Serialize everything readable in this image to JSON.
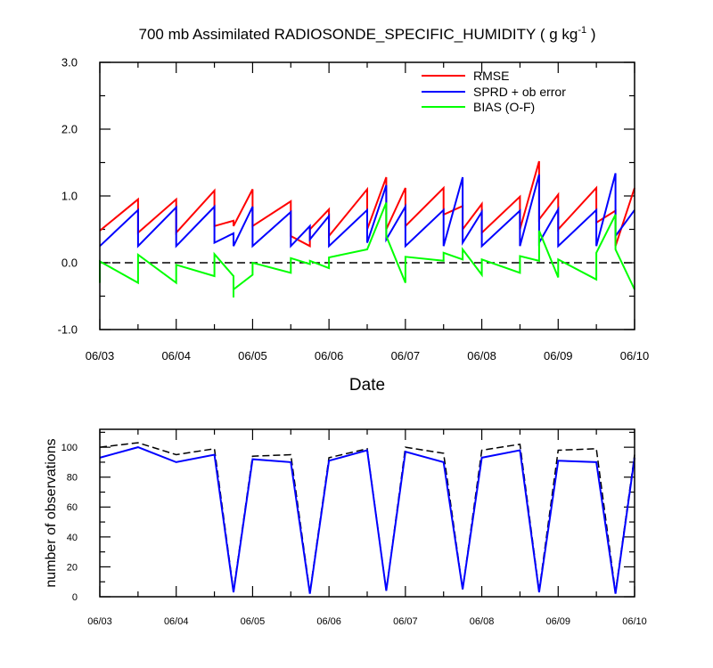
{
  "chart_data": [
    {
      "type": "line",
      "title": "700 mb Assimilated RADIOSONDE_SPECIFIC_HUMIDITY",
      "title_units_main": "( g kg",
      "title_units_sup": "-1",
      "title_units_end": " )",
      "xlabel": "Date",
      "ylabel": "",
      "x_unit": "day",
      "xlim": [
        0,
        7
      ],
      "ylim": [
        -1.0,
        3.0
      ],
      "x_ticks": [
        0,
        1,
        2,
        3,
        4,
        5,
        6,
        7
      ],
      "x_tick_labels": [
        "06/03",
        "06/04",
        "06/05",
        "06/06",
        "06/07",
        "06/08",
        "06/09",
        "06/10"
      ],
      "y_ticks": [
        -1.0,
        0.0,
        1.0,
        2.0,
        3.0
      ],
      "y_tick_labels": [
        "-1.0",
        "0.0",
        "1.0",
        "2.0",
        "3.0"
      ],
      "legend_position": "top-right",
      "grid": false,
      "zero_line": true,
      "series": [
        {
          "name": "RMSE",
          "color": "#ff0000",
          "points": [
            [
              0,
              0.48
            ],
            [
              0.5,
              0.95
            ],
            [
              0.5,
              0.45
            ],
            [
              1.0,
              0.95
            ],
            [
              1.0,
              0.45
            ],
            [
              1.5,
              1.08
            ],
            [
              1.5,
              0.55
            ],
            [
              1.75,
              0.63
            ],
            [
              1.75,
              0.55
            ],
            [
              2.0,
              1.1
            ],
            [
              2.0,
              0.55
            ],
            [
              2.5,
              0.92
            ],
            [
              2.5,
              0.4
            ],
            [
              2.75,
              0.25
            ],
            [
              2.75,
              0.5
            ],
            [
              3.0,
              0.8
            ],
            [
              3.0,
              0.4
            ],
            [
              3.5,
              1.1
            ],
            [
              3.5,
              0.5
            ],
            [
              3.75,
              1.28
            ],
            [
              3.75,
              0.5
            ],
            [
              4.0,
              1.12
            ],
            [
              4.0,
              0.55
            ],
            [
              4.5,
              1.12
            ],
            [
              4.5,
              0.72
            ],
            [
              4.75,
              0.85
            ],
            [
              4.75,
              0.5
            ],
            [
              5.0,
              0.88
            ],
            [
              5.0,
              0.45
            ],
            [
              5.5,
              0.99
            ],
            [
              5.5,
              0.5
            ],
            [
              5.75,
              1.52
            ],
            [
              5.75,
              0.65
            ],
            [
              6.0,
              1.02
            ],
            [
              6.0,
              0.5
            ],
            [
              6.5,
              1.12
            ],
            [
              6.5,
              0.6
            ],
            [
              6.75,
              0.78
            ],
            [
              6.75,
              0.25
            ],
            [
              7.0,
              1.12
            ]
          ]
        },
        {
          "name": "SPRD + ob error",
          "color": "#0000ff",
          "points": [
            [
              0,
              0.25
            ],
            [
              0.5,
              0.79
            ],
            [
              0.5,
              0.25
            ],
            [
              1.0,
              0.83
            ],
            [
              1.0,
              0.25
            ],
            [
              1.5,
              0.84
            ],
            [
              1.5,
              0.3
            ],
            [
              1.75,
              0.44
            ],
            [
              1.75,
              0.25
            ],
            [
              2.0,
              0.84
            ],
            [
              2.0,
              0.25
            ],
            [
              2.5,
              0.76
            ],
            [
              2.5,
              0.25
            ],
            [
              2.75,
              0.55
            ],
            [
              2.75,
              0.35
            ],
            [
              3.0,
              0.7
            ],
            [
              3.0,
              0.25
            ],
            [
              3.5,
              0.79
            ],
            [
              3.5,
              0.3
            ],
            [
              3.75,
              1.16
            ],
            [
              3.75,
              0.35
            ],
            [
              4.0,
              0.84
            ],
            [
              4.0,
              0.25
            ],
            [
              4.5,
              0.79
            ],
            [
              4.5,
              0.25
            ],
            [
              4.75,
              1.28
            ],
            [
              4.75,
              0.3
            ],
            [
              5.0,
              0.76
            ],
            [
              5.0,
              0.25
            ],
            [
              5.5,
              0.78
            ],
            [
              5.5,
              0.25
            ],
            [
              5.75,
              1.32
            ],
            [
              5.75,
              0.3
            ],
            [
              6.0,
              0.8
            ],
            [
              6.0,
              0.25
            ],
            [
              6.5,
              0.79
            ],
            [
              6.5,
              0.25
            ],
            [
              6.75,
              1.34
            ],
            [
              6.75,
              0.4
            ],
            [
              7.0,
              0.79
            ]
          ]
        },
        {
          "name": "BIAS (O-F)",
          "color": "#00ff00",
          "points": [
            [
              0,
              -0.3
            ],
            [
              0,
              0.02
            ],
            [
              0.5,
              -0.3
            ],
            [
              0.5,
              0.12
            ],
            [
              1.0,
              -0.3
            ],
            [
              1.0,
              -0.03
            ],
            [
              1.5,
              -0.2
            ],
            [
              1.5,
              0.13
            ],
            [
              1.75,
              -0.2
            ],
            [
              1.75,
              -0.52
            ],
            [
              1.75,
              -0.4
            ],
            [
              2.0,
              -0.18
            ],
            [
              2.0,
              0.0
            ],
            [
              2.5,
              -0.15
            ],
            [
              2.5,
              0.07
            ],
            [
              2.75,
              -0.02
            ],
            [
              2.75,
              0.03
            ],
            [
              3.0,
              -0.08
            ],
            [
              3.0,
              0.08
            ],
            [
              3.5,
              0.2
            ],
            [
              3.75,
              0.9
            ],
            [
              3.75,
              0.4
            ],
            [
              4.0,
              -0.3
            ],
            [
              4.0,
              0.09
            ],
            [
              4.5,
              0.03
            ],
            [
              4.5,
              0.15
            ],
            [
              4.75,
              0.05
            ],
            [
              4.75,
              0.2
            ],
            [
              5.0,
              -0.18
            ],
            [
              5.0,
              0.05
            ],
            [
              5.5,
              -0.15
            ],
            [
              5.5,
              0.1
            ],
            [
              5.75,
              0.03
            ],
            [
              5.75,
              0.48
            ],
            [
              6.0,
              -0.22
            ],
            [
              6.0,
              0.05
            ],
            [
              6.5,
              -0.25
            ],
            [
              6.5,
              0.15
            ],
            [
              6.75,
              0.72
            ],
            [
              6.75,
              0.2
            ],
            [
              7.0,
              -0.4
            ]
          ]
        }
      ]
    },
    {
      "type": "line",
      "title": "",
      "ylabel": "number of observations",
      "xlabel": "",
      "x_unit": "day",
      "xlim": [
        0,
        7
      ],
      "ylim": [
        0,
        112
      ],
      "x_ticks": [
        0,
        1,
        2,
        3,
        4,
        5,
        6,
        7
      ],
      "x_tick_labels": [
        "06/03",
        "06/04",
        "06/05",
        "06/06",
        "06/07",
        "06/08",
        "06/09",
        "06/10"
      ],
      "y_ticks": [
        0,
        20,
        40,
        60,
        80,
        100
      ],
      "y_tick_labels": [
        "0",
        "20",
        "40",
        "60",
        "80",
        "100"
      ],
      "grid": false,
      "series": [
        {
          "style": "dashed",
          "color": "#000000",
          "points": [
            [
              0,
              100
            ],
            [
              0.5,
              103
            ],
            [
              1.0,
              95
            ],
            [
              1.5,
              99
            ],
            [
              1.75,
              4
            ],
            [
              2.0,
              94
            ],
            [
              2.5,
              95
            ],
            [
              2.75,
              3
            ],
            [
              3.0,
              93
            ],
            [
              3.5,
              99
            ],
            [
              3.75,
              4
            ],
            [
              4.0,
              100
            ],
            [
              4.5,
              96
            ],
            [
              4.75,
              5
            ],
            [
              5.0,
              98
            ],
            [
              5.5,
              102
            ],
            [
              5.75,
              4
            ],
            [
              6.0,
              98
            ],
            [
              6.5,
              99
            ],
            [
              6.75,
              3
            ],
            [
              7.0,
              95
            ]
          ]
        },
        {
          "style": "solid",
          "color": "#0000ff",
          "points": [
            [
              0,
              93
            ],
            [
              0.5,
              100
            ],
            [
              1.0,
              90
            ],
            [
              1.5,
              95
            ],
            [
              1.75,
              3
            ],
            [
              2.0,
              92
            ],
            [
              2.5,
              90
            ],
            [
              2.75,
              2
            ],
            [
              3.0,
              91
            ],
            [
              3.5,
              98
            ],
            [
              3.75,
              4
            ],
            [
              4.0,
              97
            ],
            [
              4.5,
              90
            ],
            [
              4.75,
              5
            ],
            [
              5.0,
              93
            ],
            [
              5.5,
              98
            ],
            [
              5.75,
              3
            ],
            [
              6.0,
              91
            ],
            [
              6.5,
              90
            ],
            [
              6.75,
              2
            ],
            [
              7.0,
              93
            ]
          ]
        }
      ]
    }
  ]
}
